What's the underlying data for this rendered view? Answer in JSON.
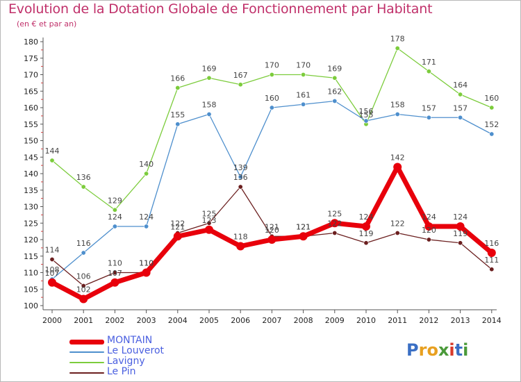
{
  "title": "Evolution de la Dotation Globale de Fonctionnement par Habitant",
  "subtitle": "(en € et par an)",
  "brand": {
    "name": "Proxiti",
    "letters": [
      {
        "ch": "P",
        "color": "#3a6fc4"
      },
      {
        "ch": "r",
        "color": "#e8a020"
      },
      {
        "ch": "o",
        "color": "#e8a020"
      },
      {
        "ch": "x",
        "color": "#4a9a3a"
      },
      {
        "ch": "i",
        "color": "#d83a2a"
      },
      {
        "ch": "t",
        "color": "#3a6fc4"
      },
      {
        "ch": "i",
        "color": "#4a9a3a"
      }
    ]
  },
  "chart_data": {
    "type": "line",
    "title": "Evolution de la Dotation Globale de Fonctionnement par Habitant",
    "subtitle": "(en € et par an)",
    "categories": [
      "2000",
      "2001",
      "2002",
      "2003",
      "2004",
      "2005",
      "2006",
      "2007",
      "2008",
      "2009",
      "2010",
      "2011",
      "2012",
      "2013",
      "2014"
    ],
    "ylim": [
      100,
      180
    ],
    "yticks": [
      100,
      105,
      110,
      115,
      120,
      125,
      130,
      135,
      140,
      145,
      150,
      155,
      160,
      165,
      170,
      175,
      180
    ],
    "grid": false,
    "legend_position": "bottom-left",
    "series": [
      {
        "name": "MONTAIN",
        "color": "#e8000b",
        "values": [
          107,
          102,
          107,
          110,
          121,
          123,
          118,
          120,
          121,
          125,
          124,
          142,
          124,
          124,
          116
        ]
      },
      {
        "name": "Le Louverot",
        "color": "#4e8fcd",
        "values": [
          108,
          116,
          124,
          124,
          155,
          158,
          139,
          160,
          161,
          162,
          156,
          158,
          157,
          157,
          152
        ]
      },
      {
        "name": "Lavigny",
        "color": "#7ccc3c",
        "values": [
          144,
          136,
          129,
          140,
          166,
          169,
          167,
          170,
          170,
          169,
          155,
          178,
          171,
          164,
          160
        ]
      },
      {
        "name": "Le Pin",
        "color": "#6b1f1f",
        "values": [
          114,
          106,
          110,
          110,
          122,
          125,
          136,
          121,
          121,
          122,
          119,
          122,
          120,
          119,
          111
        ]
      }
    ]
  }
}
